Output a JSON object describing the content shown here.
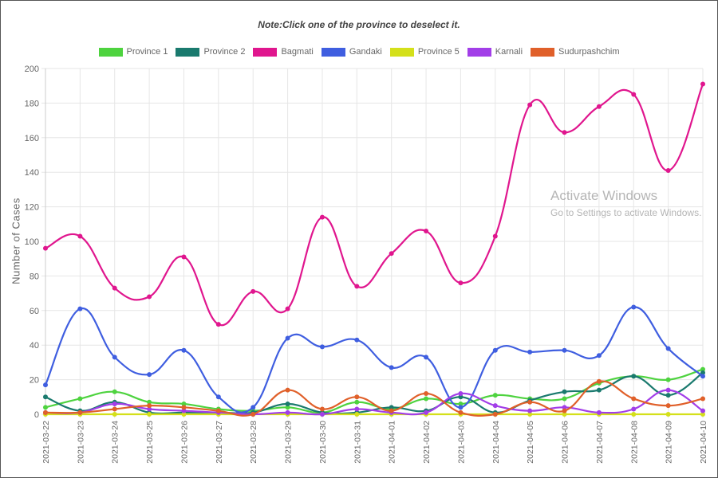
{
  "note": "Note:Click one of the province to deselect it.",
  "watermark": {
    "title": "Activate Windows",
    "sub": "Go to Settings to activate Windows."
  },
  "chart_data": {
    "type": "line",
    "title": "",
    "ylabel": "Number of Cases",
    "xlabel": "",
    "ylim": [
      0,
      200
    ],
    "yticks": [
      0,
      20,
      40,
      60,
      80,
      100,
      120,
      140,
      160,
      180,
      200
    ],
    "grid": true,
    "legend_position": "top-center",
    "x": [
      "2021-03-22",
      "2021-03-23",
      "2021-03-24",
      "2021-03-25",
      "2021-03-26",
      "2021-03-27",
      "2021-03-28",
      "2021-03-29",
      "2021-03-30",
      "2021-03-31",
      "2021-04-01",
      "2021-04-02",
      "2021-04-03",
      "2021-04-04",
      "2021-04-05",
      "2021-04-06",
      "2021-04-07",
      "2021-04-08",
      "2021-04-09",
      "2021-04-10"
    ],
    "series": [
      {
        "name": "Province 1",
        "color": "#4ed33f",
        "values": [
          4,
          9,
          13,
          7,
          6,
          3,
          2,
          4,
          1,
          7,
          3,
          9,
          6,
          11,
          9,
          9,
          18,
          22,
          20,
          26
        ]
      },
      {
        "name": "Province 2",
        "color": "#1a7a6e",
        "values": [
          10,
          2,
          7,
          1,
          1,
          1,
          1,
          6,
          1,
          1,
          4,
          2,
          10,
          1,
          8,
          13,
          14,
          22,
          11,
          24
        ]
      },
      {
        "name": "Bagmati",
        "color": "#e0168e",
        "values": [
          96,
          103,
          73,
          68,
          91,
          52,
          71,
          61,
          114,
          74,
          93,
          106,
          76,
          103,
          179,
          163,
          178,
          185,
          141,
          191
        ]
      },
      {
        "name": "Gandaki",
        "color": "#3f5ee0",
        "values": [
          17,
          61,
          33,
          23,
          37,
          10,
          4,
          44,
          39,
          43,
          27,
          33,
          4,
          37,
          36,
          37,
          34,
          62,
          38,
          22
        ]
      },
      {
        "name": "Province 5",
        "color": "#d4e01a",
        "values": [
          0,
          0,
          0,
          0,
          0,
          0,
          0,
          0,
          0,
          0,
          0,
          0,
          0,
          0,
          0,
          0,
          0,
          0,
          0,
          0
        ]
      },
      {
        "name": "Karnali",
        "color": "#a23ee8",
        "values": [
          1,
          1,
          6,
          3,
          2,
          1,
          0,
          1,
          0,
          3,
          1,
          1,
          12,
          5,
          2,
          4,
          1,
          3,
          14,
          2
        ]
      },
      {
        "name": "Sudurpashchim",
        "color": "#e0602a",
        "values": [
          1,
          1,
          3,
          5,
          4,
          2,
          0,
          14,
          3,
          10,
          2,
          12,
          1,
          0,
          7,
          2,
          19,
          9,
          5,
          9
        ]
      }
    ]
  }
}
